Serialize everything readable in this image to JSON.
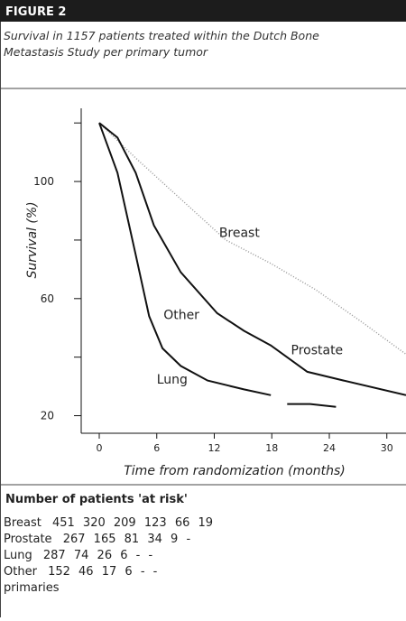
{
  "figure": {
    "label": "FIGURE 2",
    "caption_lines": [
      "Survival in 1157 patients treated within the Dutch Bone",
      "Metastasis Study per primary tumor"
    ]
  },
  "chart_data": {
    "type": "line",
    "y_label": "Survival (%)",
    "x_label": "Time from randomization (months)",
    "xlim": [
      0,
      32
    ],
    "ylim": [
      14,
      125
    ],
    "xticks": [
      0,
      6,
      12,
      18,
      24,
      30
    ],
    "yticks": [
      20,
      60,
      100
    ],
    "minor_yticks": [
      40,
      80,
      120
    ],
    "series": [
      {
        "name": "Breast",
        "color": "#999999",
        "style": "dotted",
        "x": [
          0,
          3.8,
          8.5,
          13.2,
          17.9,
          22.6,
          27.4,
          32
        ],
        "values": [
          120,
          108,
          94,
          80,
          72,
          63,
          52,
          41
        ],
        "label_at": [
          12.5,
          81
        ]
      },
      {
        "name": "Prostate",
        "color": "#111111",
        "style": "solid",
        "x": [
          0,
          1.9,
          3.8,
          5.7,
          8.5,
          12.3,
          15.1,
          17.9,
          21.7,
          25.5,
          32
        ],
        "values": [
          120,
          115,
          103,
          85,
          69,
          55,
          49,
          44,
          35,
          32,
          27
        ],
        "label_at": [
          20,
          41
        ]
      },
      {
        "name": "Lung",
        "color": "#111111",
        "style": "solid",
        "x": [
          0,
          1.9,
          3.8,
          5.2,
          6.6,
          8.5,
          11.3,
          15.1,
          17.9,
          18.5,
          19.6,
          22,
          24.7
        ],
        "values": [
          120,
          103,
          75,
          54,
          43,
          37,
          32,
          29,
          27,
          null,
          24,
          24,
          23
        ],
        "label_at": [
          6,
          31
        ]
      }
    ],
    "annotations": [
      {
        "text": "Other",
        "x": 6.7,
        "y": 53
      }
    ]
  },
  "at_risk": {
    "title": "Number of patients 'at risk'",
    "rows": [
      [
        "Breast",
        "451",
        "320",
        "209",
        "123",
        "66",
        "19"
      ],
      [
        "Prostate",
        "267",
        "165",
        "81",
        "34",
        "9",
        "-"
      ],
      [
        "Lung",
        "287",
        "74",
        "26",
        "6",
        "-",
        "-"
      ],
      [
        "Other",
        "152",
        "46",
        "17",
        "6",
        "-",
        "-"
      ]
    ],
    "footer": "primaries"
  }
}
